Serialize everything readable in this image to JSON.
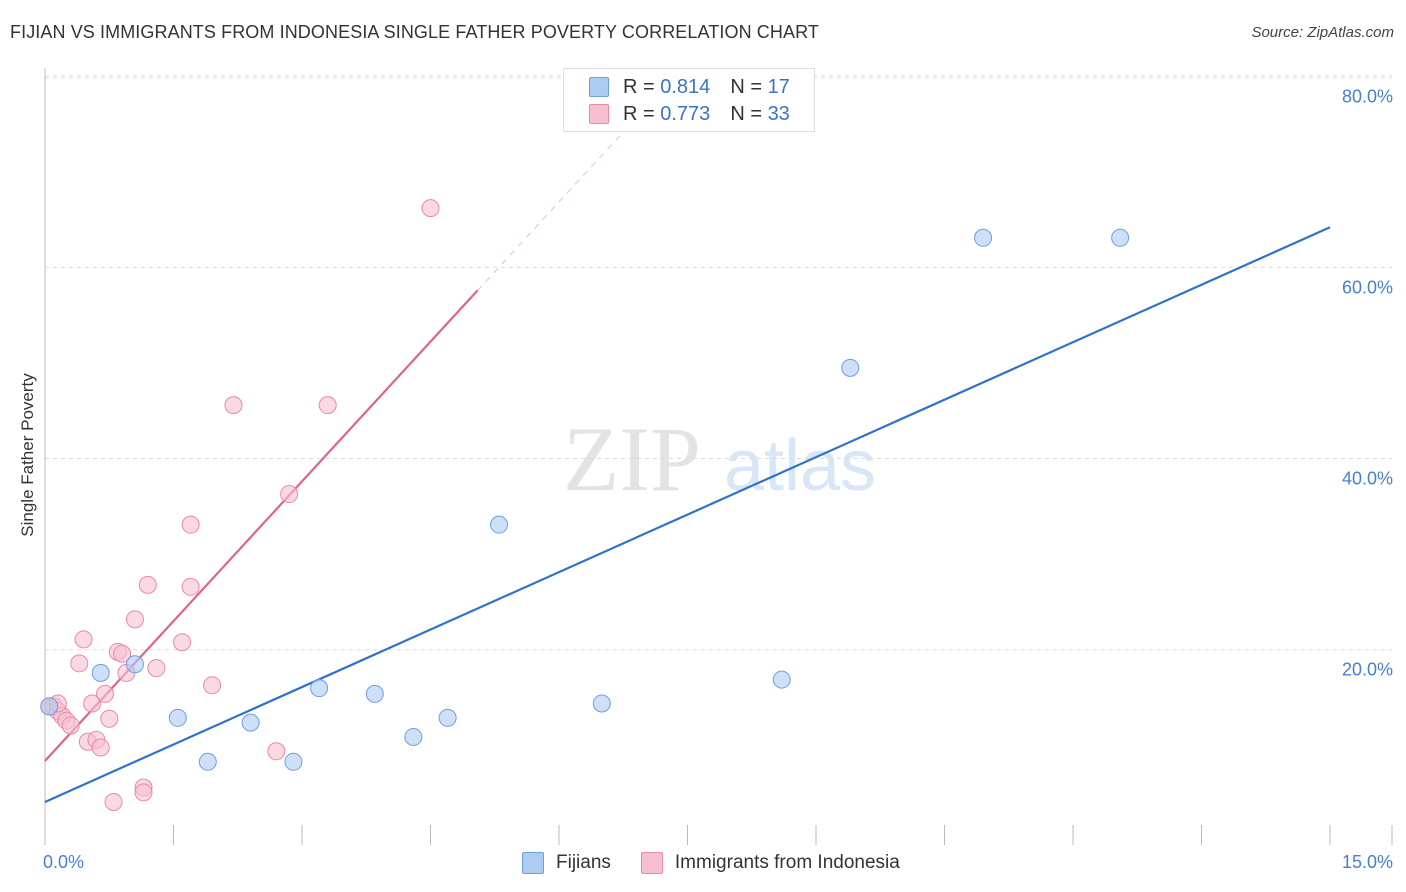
{
  "title": "FIJIAN VS IMMIGRANTS FROM INDONESIA SINGLE FATHER POVERTY CORRELATION CHART",
  "source": "Source: ZipAtlas.com",
  "watermark": {
    "zip": "ZIP",
    "atlas": "atlas"
  },
  "legend": {
    "r_label": "R =",
    "n_label": "N =",
    "series": [
      {
        "r": "0.814",
        "n": "17"
      },
      {
        "r": "0.773",
        "n": "33"
      }
    ]
  },
  "colors": {
    "fijians_fill": "#aecbf2",
    "fijians_stroke": "#6f9ee0",
    "fijians_line": "#2f72cc",
    "indonesia_fill": "#f7bfd0",
    "indonesia_stroke": "#e88aa8",
    "indonesia_line": "#e2628c"
  },
  "chart_data": {
    "type": "scatter",
    "title": "FIJIAN VS IMMIGRANTS FROM INDONESIA SINGLE FATHER POVERTY CORRELATION CHART",
    "xlabel": "",
    "ylabel": "Single Father Poverty",
    "xlim": [
      0,
      15
    ],
    "ylim": [
      0,
      80
    ],
    "x_tick_labels": [
      "0.0%",
      "15.0%"
    ],
    "y_ticks": [
      20,
      40,
      60,
      80
    ],
    "y_tick_labels": [
      "20.0%",
      "40.0%",
      "60.0%",
      "80.0%"
    ],
    "grid": true,
    "legend_position": "top-center",
    "series": [
      {
        "name": "Fijians",
        "points": [
          [
            0.05,
            14.5
          ],
          [
            0.65,
            18.0
          ],
          [
            1.05,
            18.9
          ],
          [
            1.55,
            13.3
          ],
          [
            1.9,
            8.7
          ],
          [
            2.4,
            12.8
          ],
          [
            2.9,
            8.7
          ],
          [
            3.2,
            16.4
          ],
          [
            3.85,
            15.8
          ],
          [
            4.3,
            11.3
          ],
          [
            4.7,
            13.3
          ],
          [
            5.3,
            33.5
          ],
          [
            6.5,
            14.8
          ],
          [
            8.6,
            17.3
          ],
          [
            9.4,
            49.9
          ],
          [
            10.95,
            63.5
          ],
          [
            12.55,
            63.5
          ]
        ],
        "trend": {
          "x": [
            0,
            15
          ],
          "y": [
            4.5,
            64.6
          ]
        }
      },
      {
        "name": "Immigrants from Indonesia",
        "points": [
          [
            0.05,
            14.5
          ],
          [
            0.1,
            14.5
          ],
          [
            0.15,
            14.0
          ],
          [
            0.2,
            13.5
          ],
          [
            0.25,
            13.0
          ],
          [
            0.3,
            12.5
          ],
          [
            0.4,
            19.0
          ],
          [
            0.45,
            21.5
          ],
          [
            0.5,
            10.8
          ],
          [
            0.55,
            14.8
          ],
          [
            0.6,
            11.0
          ],
          [
            0.65,
            10.2
          ],
          [
            0.7,
            15.8
          ],
          [
            0.75,
            13.2
          ],
          [
            0.8,
            4.5
          ],
          [
            0.85,
            20.2
          ],
          [
            0.9,
            20.0
          ],
          [
            0.95,
            18.0
          ],
          [
            1.05,
            23.6
          ],
          [
            1.15,
            6.0
          ],
          [
            1.2,
            27.2
          ],
          [
            1.3,
            18.5
          ],
          [
            1.6,
            21.2
          ],
          [
            1.7,
            27.0
          ],
          [
            1.7,
            33.5
          ],
          [
            1.95,
            16.7
          ],
          [
            2.2,
            46.0
          ],
          [
            2.7,
            9.8
          ],
          [
            2.85,
            36.7
          ],
          [
            3.3,
            46.0
          ],
          [
            4.5,
            66.6
          ],
          [
            1.15,
            5.5
          ],
          [
            0.15,
            14.8
          ]
        ],
        "trend": {
          "x": [
            0,
            5.05
          ],
          "y": [
            8.8,
            58.0
          ]
        },
        "trend_dashed": {
          "x": [
            5.05,
            7.0
          ],
          "y": [
            58.0,
            77.0
          ]
        }
      }
    ]
  },
  "bottom_legend": [
    "Fijians",
    "Immigrants from Indonesia"
  ]
}
